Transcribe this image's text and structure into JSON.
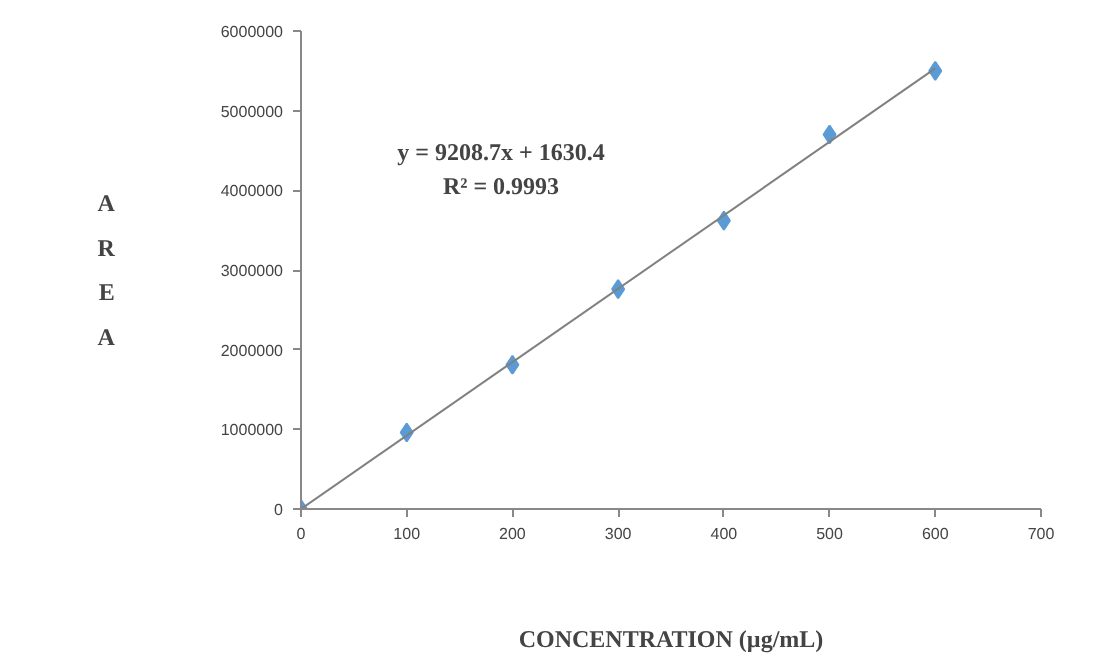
{
  "chart_data": {
    "type": "scatter",
    "xlabel": "CONCENTRATION (µg/mL)",
    "ylabel": "AREA",
    "grid": false,
    "xlim": [
      0,
      700
    ],
    "xticks": [
      0,
      100,
      200,
      300,
      400,
      500,
      600,
      700
    ],
    "ylim": [
      0,
      6000000
    ],
    "yticks": [
      0,
      1000000,
      2000000,
      3000000,
      4000000,
      5000000,
      6000000
    ],
    "series": [
      {
        "color": "#5b9bd5",
        "marker": "diamond",
        "x": [
          0,
          100,
          200,
          300,
          400,
          500,
          600
        ],
        "values": [
          0,
          960000,
          1810000,
          2760000,
          3620000,
          4700000,
          5500000
        ]
      },
      {
        "type": "line",
        "marker": "none",
        "color": "#808080",
        "x": [
          0,
          600
        ],
        "values": [
          0,
          5530000
        ]
      }
    ],
    "annotations": [
      "y = 9208.7x + 1630.4\nR² = 0.9993"
    ]
  }
}
